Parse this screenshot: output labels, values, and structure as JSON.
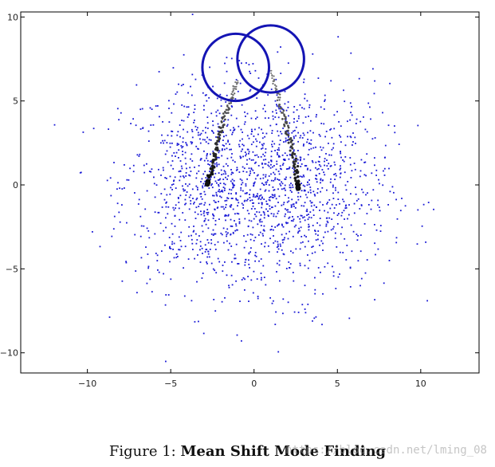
{
  "chart_data": {
    "type": "scatter",
    "title": "",
    "xlabel": "",
    "ylabel": "",
    "xlim": [
      -14,
      13.5
    ],
    "ylim": [
      -11.2,
      10.3
    ],
    "x_ticks": [
      -10,
      -5,
      0,
      5,
      10
    ],
    "y_ticks": [
      -10,
      -5,
      0,
      5,
      10
    ],
    "x_tick_labels": [
      "−10",
      "−5",
      "0",
      "5",
      "10"
    ],
    "y_tick_labels": [
      "−10",
      "−5",
      "0",
      "5",
      "10"
    ],
    "grid": false,
    "series": [
      {
        "kind": "points",
        "color": "#1a1ad6",
        "distribution": "two overlapping gaussian clusters",
        "centers": [
          [
            -2.5,
            0.0
          ],
          [
            2.7,
            -0.2
          ]
        ],
        "spread": [
          3.2,
          3.1
        ],
        "count": 1800
      },
      {
        "kind": "trajectory",
        "color": "#111111",
        "points": [
          [
            -1.0,
            6.2
          ],
          [
            -1.2,
            5.6
          ],
          [
            -1.5,
            4.8
          ],
          [
            -1.8,
            4.0
          ],
          [
            -2.1,
            3.0
          ],
          [
            -2.3,
            2.0
          ],
          [
            -2.5,
            1.0
          ],
          [
            -2.8,
            0.05
          ]
        ]
      },
      {
        "kind": "trajectory",
        "color": "#111111",
        "points": [
          [
            1.0,
            6.8
          ],
          [
            1.3,
            5.8
          ],
          [
            1.6,
            4.6
          ],
          [
            1.9,
            3.6
          ],
          [
            2.2,
            2.4
          ],
          [
            2.5,
            1.2
          ],
          [
            2.6,
            0.2
          ],
          [
            2.65,
            -0.2
          ]
        ]
      },
      {
        "kind": "circle",
        "color": "#1414b4",
        "center": [
          -1.1,
          7.0
        ],
        "radius": 2.0
      },
      {
        "kind": "circle",
        "color": "#1414b4",
        "center": [
          1.0,
          7.5
        ],
        "radius": 2.0
      }
    ]
  },
  "caption": {
    "label": "Figure 1: ",
    "title": "Mean Shift Mode Finding"
  },
  "watermark": "https://blog.csdn.net/lming_08"
}
